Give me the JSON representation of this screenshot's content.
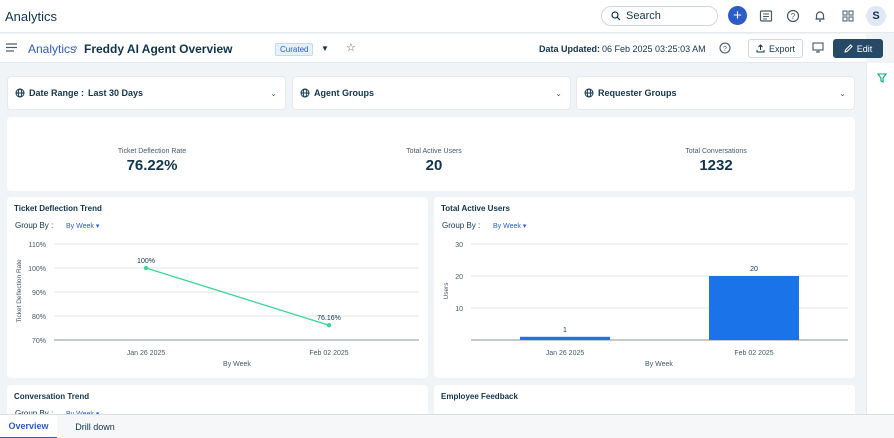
{
  "app": {
    "title": "Analytics"
  },
  "topbar": {
    "search_placeholder": "Search",
    "avatar_initial": "S"
  },
  "header": {
    "breadcrumb": "Analytics",
    "title": "Freddy AI Agent Overview",
    "badge": "Curated",
    "data_updated_label": "Data Updated:",
    "data_updated_value": "06 Feb 2025 03:25:03 AM",
    "export_label": "Export",
    "edit_label": "Edit"
  },
  "filters": [
    {
      "label": "Date Range :",
      "value": "Last 30 Days"
    },
    {
      "label": "Agent Groups",
      "value": ""
    },
    {
      "label": "Requester Groups",
      "value": ""
    }
  ],
  "kpis": [
    {
      "label": "Ticket Deflection Rate",
      "value": "76.22%"
    },
    {
      "label": "Total Active Users",
      "value": "20"
    },
    {
      "label": "Total Conversations",
      "value": "1232"
    }
  ],
  "cards": {
    "deflection": {
      "title": "Ticket Deflection Trend",
      "group_by_label": "Group By :",
      "group_by_value": "By Week"
    },
    "active_users": {
      "title": "Total Active Users",
      "group_by_label": "Group By :",
      "group_by_value": "By Week"
    },
    "conversation": {
      "title": "Conversation Trend",
      "group_by_label": "Group By :",
      "group_by_value": "By Week"
    },
    "feedback": {
      "title": "Employee Feedback"
    }
  },
  "chart_data": [
    {
      "type": "line",
      "title": "Ticket Deflection Trend",
      "xlabel": "By Week",
      "ylabel": "Ticket Deflection Rate",
      "categories": [
        "Jan 26 2025",
        "Feb 02 2025"
      ],
      "values": [
        100,
        76.16
      ],
      "data_labels": [
        "100%",
        "76.16%"
      ],
      "yticks": [
        "110%",
        "100%",
        "90%",
        "80%",
        "70%"
      ],
      "ylim": [
        70,
        110
      ],
      "color": "#3dd598",
      "grid": true
    },
    {
      "type": "bar",
      "title": "Total Active Users",
      "xlabel": "By Week",
      "ylabel": "Users",
      "categories": [
        "Jan 26 2025",
        "Feb 02 2025"
      ],
      "values": [
        1,
        20
      ],
      "data_labels": [
        "1",
        "20"
      ],
      "yticks": [
        "30",
        "20",
        "10"
      ],
      "ylim": [
        0,
        30
      ],
      "color": "#1a73e8",
      "grid": true
    }
  ],
  "bottom_tabs": [
    {
      "label": "Overview",
      "active": true
    },
    {
      "label": "Drill down",
      "active": false
    }
  ]
}
